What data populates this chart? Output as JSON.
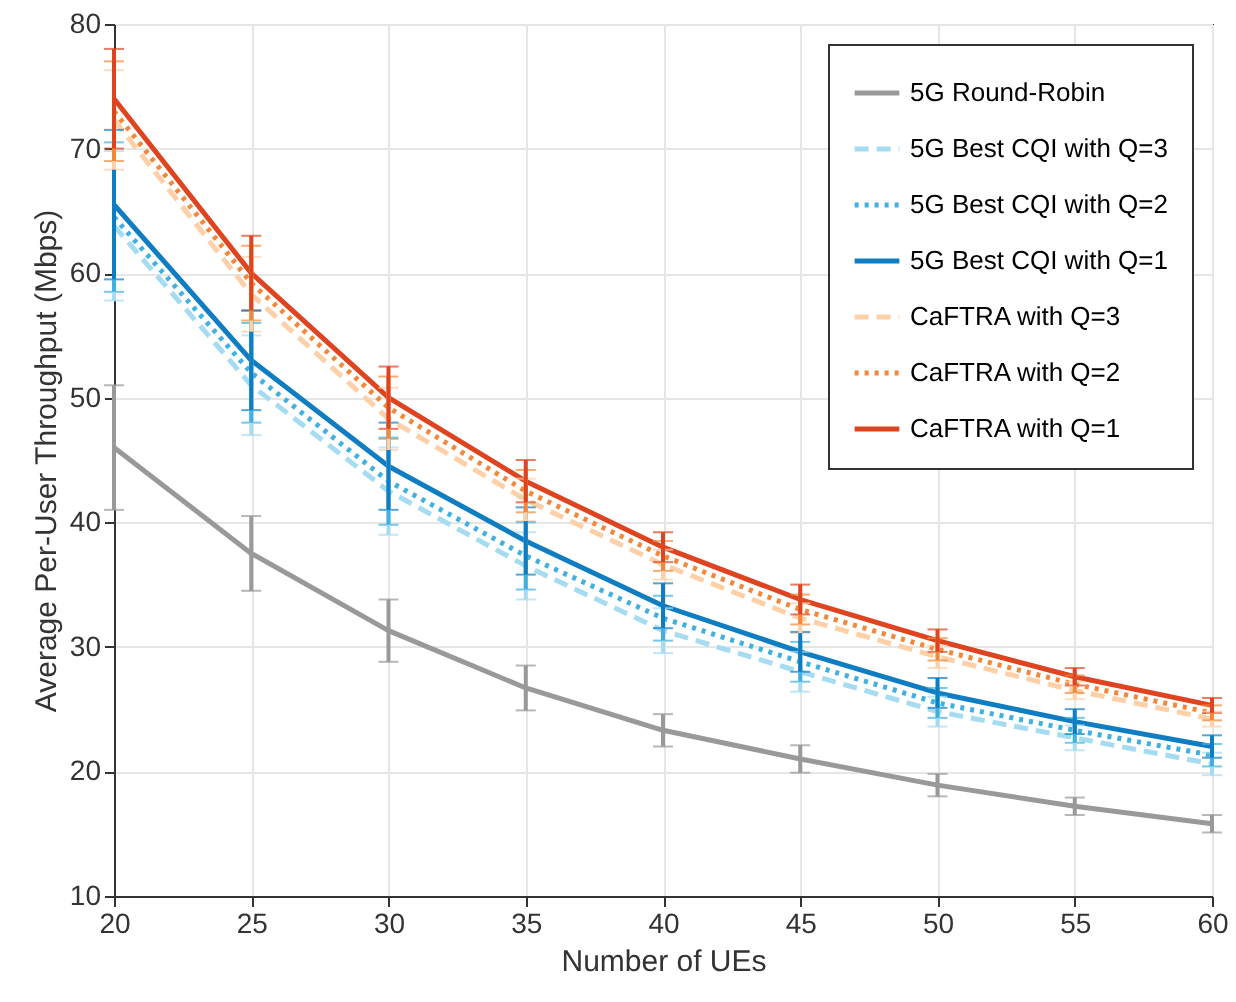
{
  "chart_data": {
    "type": "line",
    "xlabel": "Number of UEs",
    "ylabel": "Average Per-User Throughput (Mbps)",
    "x": [
      20,
      25,
      30,
      35,
      40,
      45,
      50,
      55,
      60
    ],
    "xlim": [
      20,
      60
    ],
    "xticks": [
      20,
      25,
      30,
      35,
      40,
      45,
      50,
      55,
      60
    ],
    "ylim": [
      10,
      80
    ],
    "yticks": [
      10,
      20,
      30,
      40,
      50,
      60,
      70,
      80
    ],
    "grid": true,
    "legend": "top right",
    "series": [
      {
        "name": "5G Round-Robin",
        "color": "#999999",
        "line_style": "solid",
        "values": [
          46,
          37.5,
          31.3,
          26.7,
          23.3,
          21,
          18.9,
          17.2,
          15.8
        ],
        "errors": [
          5,
          3,
          2.5,
          1.8,
          1.3,
          1.1,
          0.9,
          0.7,
          0.7
        ]
      },
      {
        "name": "5G Best CQI with Q=3",
        "color": "#a6dcf2",
        "line_style": "dashed",
        "values": [
          63.8,
          51,
          42.5,
          36.5,
          31.3,
          28,
          24.8,
          22.7,
          20.6
        ],
        "errors": [
          6,
          4,
          3.5,
          2.7,
          1.8,
          1.6,
          1.2,
          1,
          0.9
        ]
      },
      {
        "name": "5G Best CQI with Q=2",
        "color": "#3fb0e0",
        "line_style": "dotted",
        "values": [
          64.5,
          52,
          43.3,
          37.3,
          32.3,
          28.8,
          25.5,
          23.3,
          21.3
        ],
        "errors": [
          6,
          4,
          3.5,
          2.7,
          1.8,
          1.6,
          1.2,
          1,
          0.9
        ]
      },
      {
        "name": "5G Best CQI with Q=1",
        "color": "#0f7dc2",
        "line_style": "solid",
        "values": [
          65.5,
          53,
          44.5,
          38.5,
          33.3,
          29.6,
          26.3,
          24,
          22
        ],
        "errors": [
          6,
          4,
          3.5,
          2.7,
          1.8,
          1.6,
          1.2,
          1,
          0.9
        ]
      },
      {
        "name": "CaFTRA with Q=3",
        "color": "#fdd0a8",
        "line_style": "dashed",
        "values": [
          72.3,
          58.3,
          48.3,
          41.8,
          36.6,
          32.3,
          29.2,
          26.5,
          24.2
        ],
        "errors": [
          4,
          3,
          2.5,
          1.7,
          1.2,
          1.2,
          0.9,
          0.7,
          0.6
        ]
      },
      {
        "name": "CaFTRA with Q=2",
        "color": "#f3883a",
        "line_style": "dotted",
        "values": [
          73,
          59.2,
          49.2,
          42.5,
          37.3,
          33,
          29.8,
          27,
          24.7
        ],
        "errors": [
          4,
          3,
          2.5,
          1.7,
          1.2,
          1.2,
          0.9,
          0.7,
          0.6
        ]
      },
      {
        "name": "CaFTRA with Q=1",
        "color": "#de4420",
        "line_style": "solid",
        "values": [
          74,
          60,
          50,
          43.3,
          38,
          33.8,
          30.5,
          27.6,
          25.3
        ],
        "errors": [
          4,
          3,
          2.5,
          1.7,
          1.2,
          1.2,
          0.9,
          0.7,
          0.6
        ]
      }
    ]
  }
}
